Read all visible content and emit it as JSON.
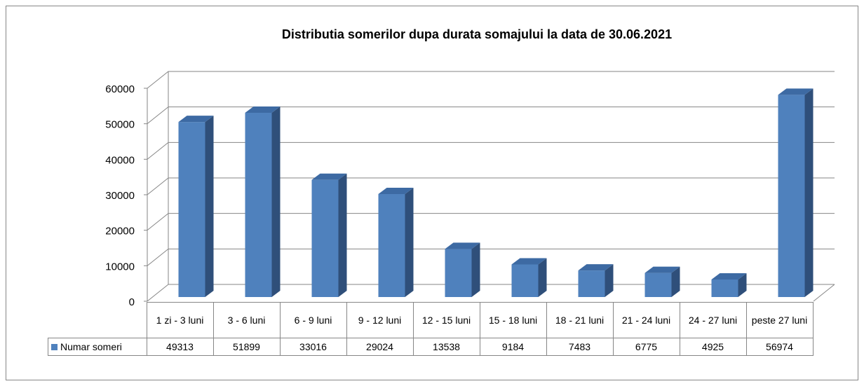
{
  "chart_data": {
    "type": "bar3d",
    "title": "Distributia somerilor dupa durata somajului la data de 30.06.2021",
    "categories": [
      "1 zi - 3 luni",
      "3 - 6 luni",
      "6 - 9 luni",
      "9 - 12 luni",
      "12 - 15 luni",
      "15 - 18 luni",
      "18 - 21 luni",
      "21 - 24 luni",
      "24 - 27 luni",
      "peste 27 luni"
    ],
    "series": [
      {
        "name": "Numar someri",
        "color": "#4f81bd",
        "values": [
          49313,
          51899,
          33016,
          29024,
          13538,
          9184,
          7483,
          6775,
          4925,
          56974
        ]
      }
    ],
    "ylim": [
      0,
      60000
    ],
    "yticks": [
      0,
      10000,
      20000,
      30000,
      40000,
      50000,
      60000
    ],
    "grid": true,
    "data_table": true
  }
}
